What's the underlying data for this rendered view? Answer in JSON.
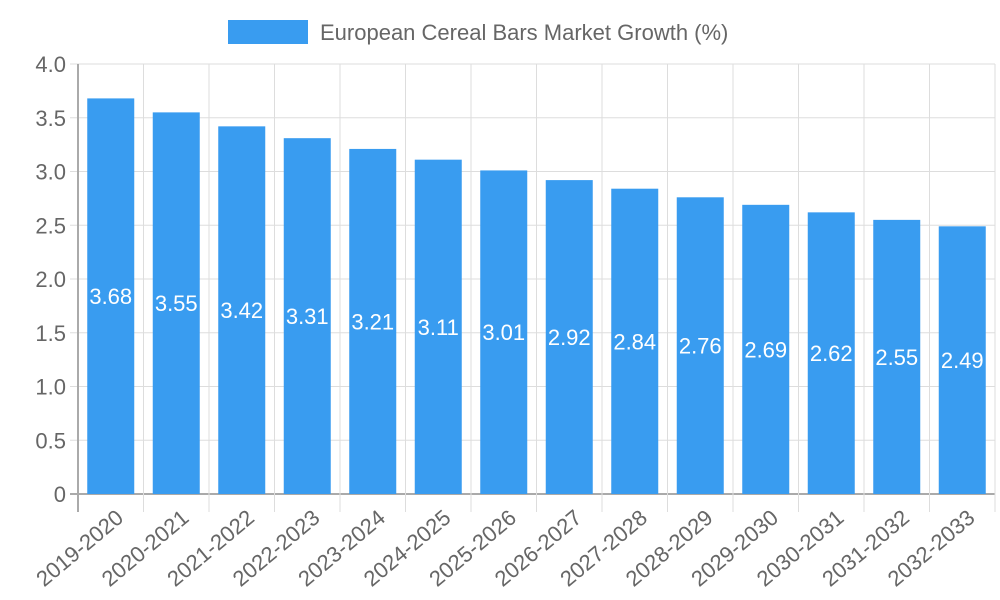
{
  "chart_data": {
    "type": "bar",
    "title": "",
    "legend": {
      "label": "European Cereal Bars Market Growth (%)",
      "position": "top"
    },
    "categories": [
      "2019-2020",
      "2020-2021",
      "2021-2022",
      "2022-2023",
      "2023-2024",
      "2024-2025",
      "2025-2026",
      "2026-2027",
      "2027-2028",
      "2028-2029",
      "2029-2030",
      "2030-2031",
      "2031-2032",
      "2032-2033"
    ],
    "series": [
      {
        "name": "European Cereal Bars Market Growth (%)",
        "values": [
          3.68,
          3.55,
          3.42,
          3.31,
          3.21,
          3.11,
          3.01,
          2.92,
          2.84,
          2.76,
          2.69,
          2.62,
          2.55,
          2.49
        ]
      }
    ],
    "y_ticks": [
      "0",
      "0.5",
      "1.0",
      "1.5",
      "2.0",
      "2.5",
      "3.0",
      "3.5",
      "4.0"
    ],
    "ylim": [
      0,
      4
    ],
    "xlabel": "",
    "ylabel": "",
    "grid": true,
    "colors": {
      "bar": "#399cf0",
      "grid": "#dddddd",
      "axis": "#aaaaaa",
      "text": "#666666",
      "data_label": "#ffffff"
    }
  }
}
